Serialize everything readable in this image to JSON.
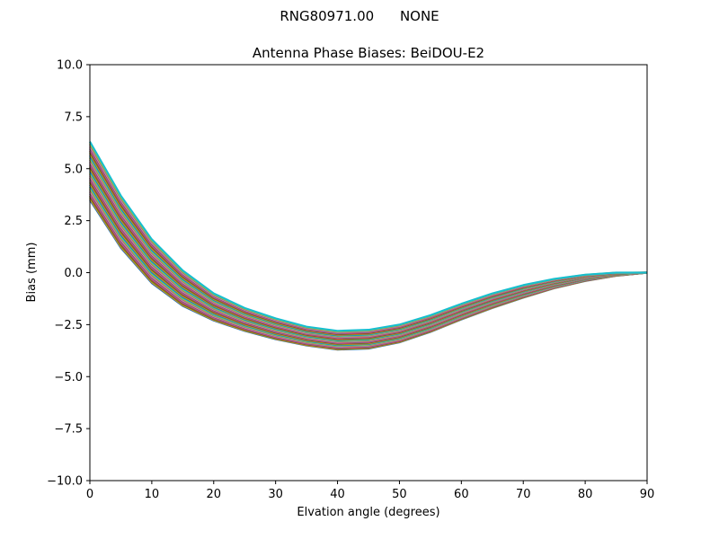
{
  "figure": {
    "suptitle_id": "RNG80971.00",
    "suptitle_radome": "NONE"
  },
  "chart_data": {
    "type": "line",
    "title": "Antenna Phase Biases: BeiDOU-E2",
    "xlabel": "Elvation angle (degrees)",
    "ylabel": "Bias (mm)",
    "xlim": [
      0,
      90
    ],
    "ylim": [
      -10,
      10
    ],
    "xticks": [
      "0",
      "10",
      "20",
      "30",
      "40",
      "50",
      "60",
      "70",
      "80",
      "90"
    ],
    "yticks": [
      "10.0",
      "7.5",
      "5.0",
      "2.5",
      "0.0",
      "−2.5",
      "−5.0",
      "−7.5",
      "−10.0"
    ],
    "grid": false,
    "legend": "none",
    "x": [
      0,
      5,
      10,
      15,
      20,
      25,
      30,
      35,
      40,
      45,
      50,
      55,
      60,
      65,
      70,
      75,
      80,
      85,
      90
    ],
    "envelope_upper": [
      6.3,
      3.7,
      1.6,
      0.1,
      -1.0,
      -1.7,
      -2.2,
      -2.6,
      -2.8,
      -2.75,
      -2.5,
      -2.05,
      -1.5,
      -1.0,
      -0.6,
      -0.3,
      -0.1,
      0.0,
      0.0
    ],
    "envelope_lower": [
      3.5,
      1.2,
      -0.5,
      -1.6,
      -2.3,
      -2.8,
      -3.2,
      -3.5,
      -3.7,
      -3.65,
      -3.35,
      -2.85,
      -2.25,
      -1.7,
      -1.2,
      -0.75,
      -0.4,
      -0.15,
      0.0
    ],
    "series_count": 40,
    "series_colors": [
      "#1f77b4",
      "#ff7f0e",
      "#2ca02c",
      "#d62728",
      "#9467bd",
      "#8c564b",
      "#e377c2",
      "#7f7f7f",
      "#bcbd22",
      "#17becf"
    ]
  }
}
